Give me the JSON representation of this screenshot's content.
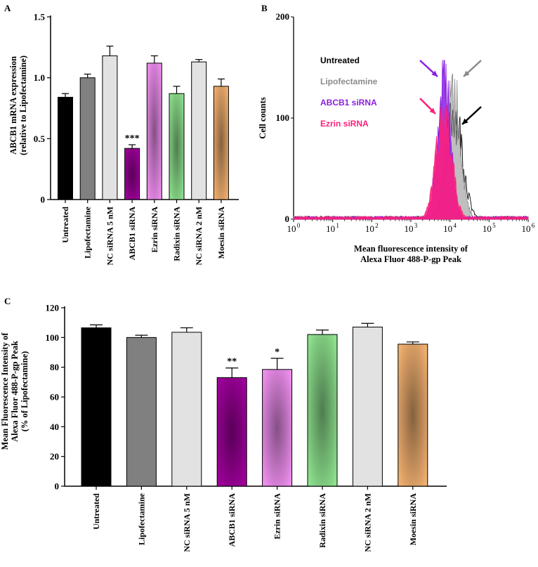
{
  "chart_data": [
    {
      "panel": "A",
      "type": "bar",
      "ylabel_lines": [
        "ABCB1 mRNA expression",
        "(relative to Lipofectamine)"
      ],
      "ylim": [
        0,
        1.5
      ],
      "yticks": [
        "0",
        "0.5",
        "1.0",
        "1.5"
      ],
      "ytick_values": [
        0,
        0.5,
        1.0,
        1.5
      ],
      "categories": [
        "Untreated",
        "Lipofectamine",
        "NC siRNA 5 nM",
        "ABCB1 siRNA",
        "Ezrin siRNA",
        "Radixin siRNA",
        "NC siRNA 2 nM",
        "Moesin siRNA"
      ],
      "values": [
        0.84,
        1.0,
        1.18,
        0.42,
        1.12,
        0.87,
        1.13,
        0.93
      ],
      "errors": [
        0.03,
        0.03,
        0.08,
        0.03,
        0.06,
        0.06,
        0.02,
        0.06
      ],
      "significance": [
        "",
        "",
        "",
        "***",
        "",
        "",
        "",
        ""
      ],
      "colors": [
        "#000000",
        "#808080",
        "#e2e2e2",
        "#a0009c",
        "#f08ff0",
        "#8ee28e",
        "#e2e2e2",
        "#f2b070"
      ],
      "gradient": [
        false,
        false,
        false,
        true,
        true,
        true,
        false,
        true
      ]
    },
    {
      "panel": "B",
      "type": "histogram",
      "xlabel_lines": [
        "Mean fluorescence intensity  of",
        "Alexa Fluor 488-P-gp Peak"
      ],
      "ylabel": "Cell counts",
      "xscale": "log",
      "xlim": [
        1,
        1000000
      ],
      "ylim": [
        0,
        200
      ],
      "yticks": [
        "0",
        "100",
        "200"
      ],
      "ytick_values": [
        0,
        100,
        200
      ],
      "xtick_bases": [
        "10",
        "10",
        "10",
        "10",
        "10",
        "10",
        "10"
      ],
      "xtick_exps": [
        "0",
        "1",
        "2",
        "3",
        "4",
        "5",
        "6"
      ],
      "legend": {
        "position": "top-left",
        "entries": [
          {
            "label": "Untreated",
            "color": "#000000"
          },
          {
            "label": "Lipofectamine",
            "color": "#8a8a8a"
          },
          {
            "label": "ABCB1 siRNA",
            "color": "#8b1fe0"
          },
          {
            "label": "Ezrin siRNA",
            "color": "#ff1f7a"
          }
        ]
      },
      "series": [
        {
          "name": "Untreated",
          "color": "#000000",
          "peak_x": 13000,
          "peak_y": 125,
          "spread": 0.21
        },
        {
          "name": "Lipofectamine",
          "color": "#8a8a8a",
          "peak_x": 12500,
          "peak_y": 148,
          "spread": 0.18
        },
        {
          "name": "ABCB1 siRNA",
          "color": "#8b1fe0",
          "peak_x": 7000,
          "peak_y": 160,
          "spread": 0.17
        },
        {
          "name": "Ezrin siRNA",
          "color": "#ff1f7a",
          "peak_x": 7000,
          "peak_y": 118,
          "spread": 0.2
        }
      ]
    },
    {
      "panel": "C",
      "type": "bar",
      "ylabel_lines": [
        "Mean Fluorescence Intensity  of",
        "Alexa Fluor 488-P-gp Peak",
        "(% of Lipofectamine)"
      ],
      "ylim": [
        0,
        120
      ],
      "yticks": [
        "0",
        "20",
        "40",
        "60",
        "80",
        "100",
        "120"
      ],
      "ytick_values": [
        0,
        20,
        40,
        60,
        80,
        100,
        120
      ],
      "categories": [
        "Untreated",
        "Lipofectamine",
        "NC siRNA 5 nM",
        "ABCB1 siRNA",
        "Ezrin siRNA",
        "Radixin  siRNA",
        "NC siRNA 2 nM",
        "Moesin siRNA"
      ],
      "values": [
        106.5,
        100,
        103.5,
        73,
        78.5,
        102,
        107,
        95.5
      ],
      "errors": [
        2,
        1.5,
        3,
        6.5,
        7.5,
        3,
        2.5,
        1.5
      ],
      "significance": [
        "",
        "",
        "",
        "**",
        "*",
        "",
        "",
        ""
      ],
      "colors": [
        "#000000",
        "#808080",
        "#e2e2e2",
        "#a0009c",
        "#f08ff0",
        "#8ee28e",
        "#e2e2e2",
        "#f2b070"
      ],
      "gradient": [
        false,
        false,
        false,
        true,
        true,
        true,
        false,
        true
      ]
    }
  ]
}
